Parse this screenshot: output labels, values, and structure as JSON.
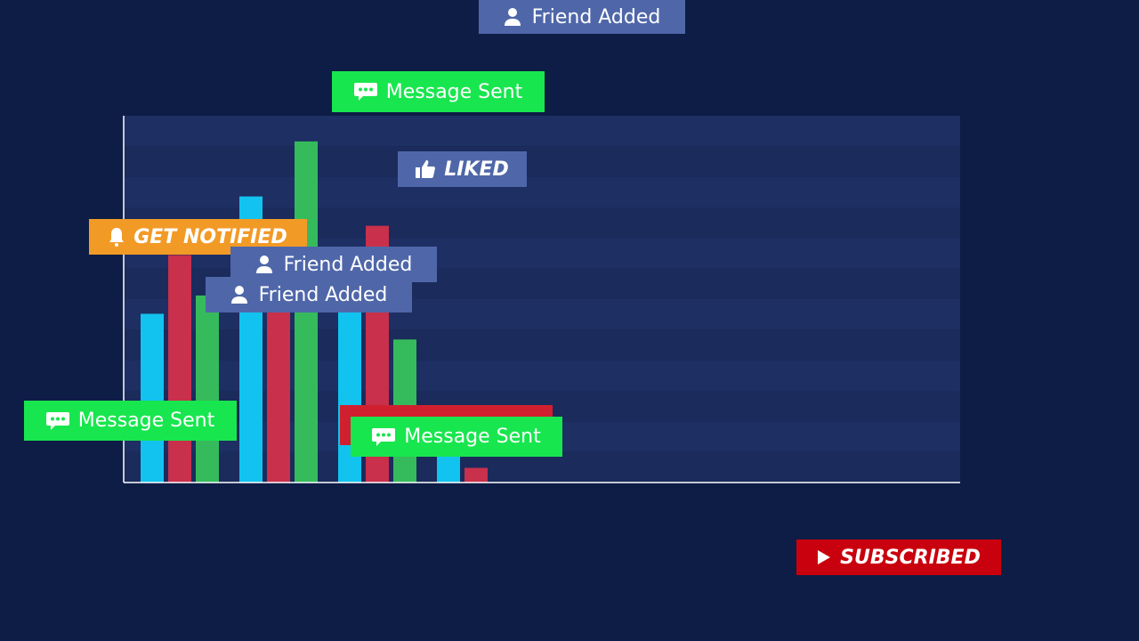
{
  "chart_data": {
    "type": "bar",
    "categories": [
      null,
      null,
      null,
      null
    ],
    "series": [
      {
        "color": "#12c3ef",
        "values": [
          46,
          78,
          48,
          12
        ]
      },
      {
        "color": "#c8304c",
        "values": [
          62,
          59,
          70,
          4
        ]
      },
      {
        "color": "#36bb5c",
        "values": [
          51,
          93,
          39,
          null
        ]
      }
    ],
    "ylim": [
      0,
      100
    ],
    "annotations": [
      "Friend Added",
      "Message Sent",
      "LIKED",
      "GET NOTIFIED",
      "Friend Added",
      "Friend Added",
      "Message Sent",
      "Message Sent",
      "SUBSCRIBED"
    ]
  }
}
